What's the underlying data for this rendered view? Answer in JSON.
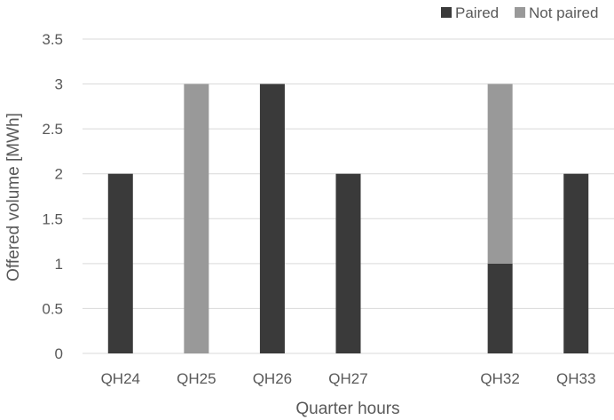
{
  "chart_data": {
    "type": "bar",
    "stacked": true,
    "categories": [
      "QH24",
      "QH25",
      "QH26",
      "QH27",
      "",
      "QH32",
      "QH33"
    ],
    "series": [
      {
        "name": "Paired",
        "values": [
          2,
          0,
          3,
          2,
          0,
          1,
          2
        ],
        "color": "#3a3a3a"
      },
      {
        "name": "Not paired",
        "values": [
          0,
          3,
          0,
          0,
          0,
          2,
          0
        ],
        "color": "#999999"
      }
    ],
    "xlabel": "Quarter hours",
    "ylabel": "Offered volume [MWh]",
    "ylim": [
      0,
      3.5
    ],
    "yticks": [
      "0",
      "0.5",
      "1",
      "1.5",
      "2",
      "2.5",
      "3",
      "3.5"
    ],
    "grid": true,
    "legend_position": "top-right"
  }
}
